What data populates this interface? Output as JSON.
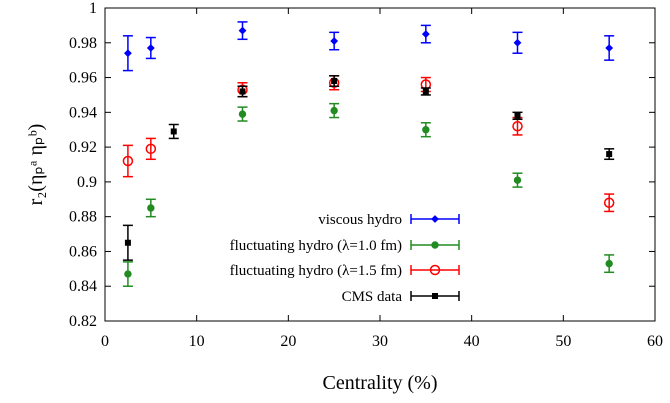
{
  "chart_data": {
    "type": "scatter",
    "title": "",
    "xlabel": "Centrality (%)",
    "ylabel": "r₂(ηₚᵃ ηₚᵇ)",
    "xlim": [
      0,
      60
    ],
    "ylim": [
      0.82,
      1.0
    ],
    "x_ticks": [
      "0",
      "10",
      "20",
      "30",
      "40",
      "50",
      "60"
    ],
    "y_ticks": [
      "0.82",
      "0.84",
      "0.86",
      "0.88",
      "0.9",
      "0.92",
      "0.94",
      "0.96",
      "0.98",
      "1"
    ],
    "grid": false,
    "legend_position": "bottom-right",
    "series": [
      {
        "name": "viscous hydro",
        "color": "#0000ff",
        "marker": "diamond-filled",
        "x": [
          2.5,
          5,
          15,
          25,
          35,
          45,
          55
        ],
        "y": [
          0.974,
          0.977,
          0.987,
          0.981,
          0.985,
          0.98,
          0.977
        ],
        "err": [
          0.01,
          0.006,
          0.005,
          0.005,
          0.005,
          0.006,
          0.007
        ]
      },
      {
        "name": "fluctuating hydro (λ=1.0 fm)",
        "color": "#228b22",
        "marker": "circle-filled",
        "x": [
          2.5,
          5,
          15,
          25,
          35,
          45,
          55
        ],
        "y": [
          0.847,
          0.885,
          0.939,
          0.941,
          0.93,
          0.901,
          0.853
        ],
        "err": [
          0.007,
          0.005,
          0.004,
          0.004,
          0.004,
          0.004,
          0.005
        ]
      },
      {
        "name": "fluctuating hydro (λ=1.5 fm)",
        "color": "#ff0000",
        "marker": "circle-open",
        "x": [
          2.5,
          5,
          15,
          25,
          35,
          45,
          55
        ],
        "y": [
          0.912,
          0.919,
          0.953,
          0.957,
          0.956,
          0.932,
          0.888
        ],
        "err": [
          0.009,
          0.006,
          0.004,
          0.004,
          0.004,
          0.005,
          0.005
        ]
      },
      {
        "name": "CMS data",
        "color": "#000000",
        "marker": "square-filled",
        "x": [
          2.5,
          7.5,
          15,
          25,
          35,
          45,
          55
        ],
        "y": [
          0.865,
          0.929,
          0.952,
          0.958,
          0.952,
          0.938,
          0.916
        ],
        "err": [
          0.01,
          0.004,
          0.003,
          0.003,
          0.002,
          0.002,
          0.003
        ]
      }
    ]
  }
}
